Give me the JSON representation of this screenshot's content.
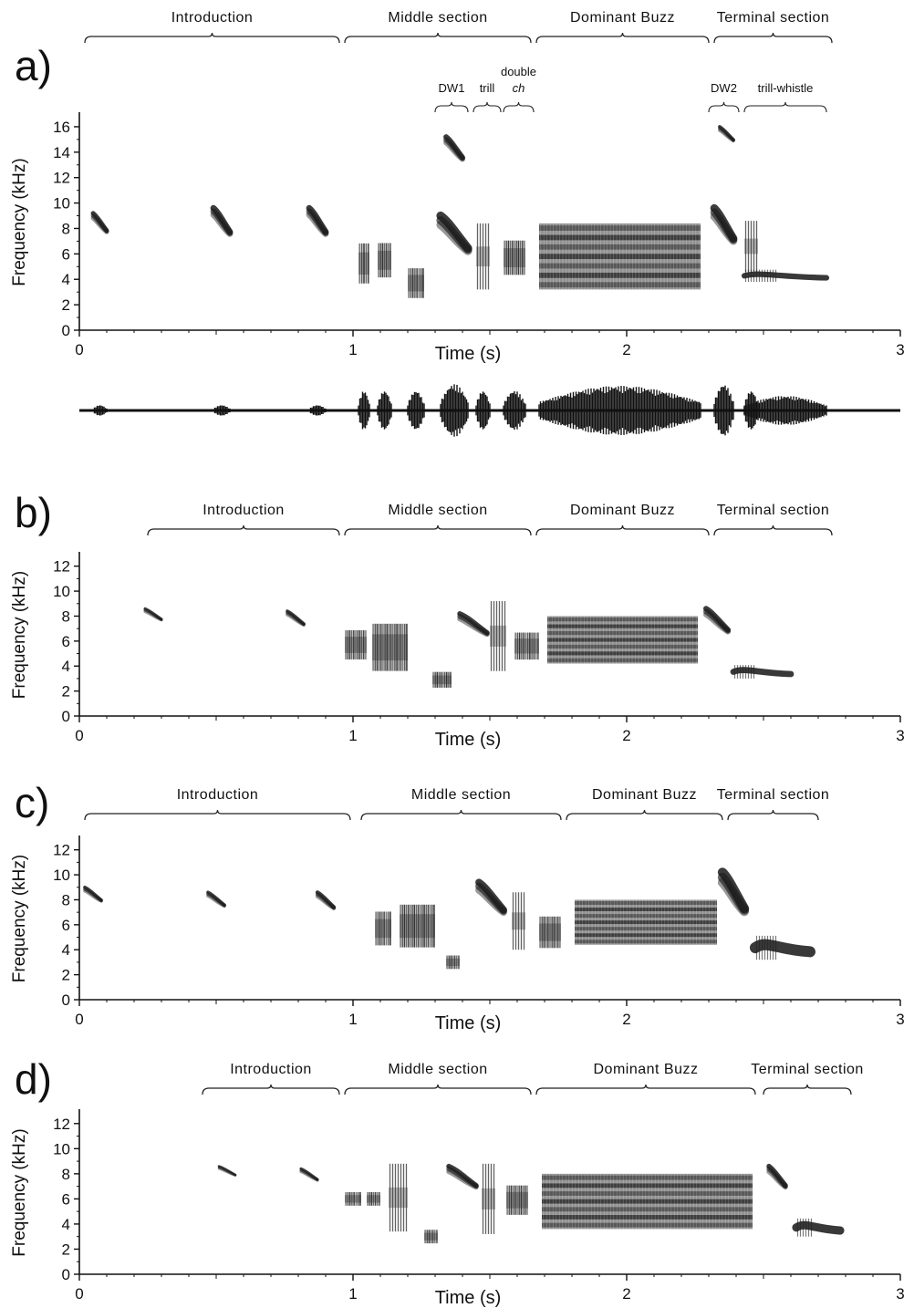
{
  "chart_data": [
    {
      "panel": "a)",
      "type": "spectrogram",
      "ylabel": "Frequency (kHz)",
      "xlabel": "Time (s)",
      "xlim": [
        0,
        3
      ],
      "ylim": [
        0,
        17
      ],
      "yticks": [
        "0",
        "2",
        "4",
        "6",
        "8",
        "10",
        "12",
        "14",
        "16"
      ],
      "xticks": [
        "0",
        "1",
        "2",
        "3"
      ],
      "sections": [
        {
          "label": "Introduction",
          "start": 0.02,
          "end": 0.95
        },
        {
          "label": "Middle section",
          "start": 0.97,
          "end": 1.65
        },
        {
          "label": "Dominant Buzz",
          "start": 1.67,
          "end": 2.3
        },
        {
          "label": "Terminal section",
          "start": 2.32,
          "end": 2.75
        }
      ],
      "subsections": [
        {
          "label": "DW1",
          "start": 1.3,
          "end": 1.42
        },
        {
          "label": "trill",
          "start": 1.44,
          "end": 1.54
        },
        {
          "label": "double",
          "label2": "ch",
          "start": 1.55,
          "end": 1.66
        },
        {
          "label": "DW2",
          "start": 2.3,
          "end": 2.41
        },
        {
          "label": "trill-whistle",
          "start": 2.43,
          "end": 2.73
        }
      ],
      "elements": [
        {
          "t0": 0.05,
          "t1": 0.1,
          "f0": 7.6,
          "f1": 9.2,
          "shape": "down"
        },
        {
          "t0": 0.49,
          "t1": 0.55,
          "f0": 7.4,
          "f1": 9.6,
          "shape": "down"
        },
        {
          "t0": 0.84,
          "t1": 0.9,
          "f0": 7.4,
          "f1": 9.6,
          "shape": "down"
        },
        {
          "t0": 1.02,
          "t1": 1.06,
          "f0": 3.5,
          "f1": 7.0,
          "shape": "block"
        },
        {
          "t0": 1.09,
          "t1": 1.14,
          "f0": 4.0,
          "f1": 7.0,
          "shape": "block"
        },
        {
          "t0": 1.2,
          "t1": 1.26,
          "f0": 2.4,
          "f1": 5.0,
          "shape": "block"
        },
        {
          "t0": 1.32,
          "t1": 1.42,
          "f0": 6.0,
          "f1": 9.0,
          "shape": "down"
        },
        {
          "t0": 1.34,
          "t1": 1.4,
          "f0": 13.3,
          "f1": 15.2,
          "shape": "down"
        },
        {
          "t0": 1.45,
          "t1": 1.5,
          "f0": 3.2,
          "f1": 8.4,
          "shape": "bars"
        },
        {
          "t0": 1.55,
          "t1": 1.63,
          "f0": 4.2,
          "f1": 7.2,
          "shape": "block"
        },
        {
          "t0": 1.68,
          "t1": 2.27,
          "f0": 3.2,
          "f1": 8.4,
          "shape": "buzz"
        },
        {
          "t0": 2.32,
          "t1": 2.39,
          "f0": 6.8,
          "f1": 9.6,
          "shape": "down"
        },
        {
          "t0": 2.34,
          "t1": 2.39,
          "f0": 14.8,
          "f1": 16.0,
          "shape": "down"
        },
        {
          "t0": 2.43,
          "t1": 2.73,
          "f0": 3.8,
          "f1": 4.6,
          "shape": "whistle"
        },
        {
          "t0": 2.43,
          "t1": 2.48,
          "f0": 4.6,
          "f1": 8.6,
          "shape": "bars"
        }
      ],
      "waveform": true
    },
    {
      "panel": "b)",
      "type": "spectrogram",
      "ylabel": "Frequency (kHz)",
      "xlabel": "Time (s)",
      "xlim": [
        0,
        3
      ],
      "ylim": [
        0,
        13
      ],
      "yticks": [
        "0",
        "2",
        "4",
        "6",
        "8",
        "10",
        "12"
      ],
      "xticks": [
        "0",
        "1",
        "2",
        "3"
      ],
      "sections": [
        {
          "label": "Introduction",
          "start": 0.25,
          "end": 0.95
        },
        {
          "label": "Middle section",
          "start": 0.97,
          "end": 1.65
        },
        {
          "label": "Dominant Buzz",
          "start": 1.67,
          "end": 2.3
        },
        {
          "label": "Terminal section",
          "start": 2.32,
          "end": 2.75
        }
      ],
      "elements": [
        {
          "t0": 0.24,
          "t1": 0.3,
          "f0": 7.6,
          "f1": 8.6,
          "shape": "down"
        },
        {
          "t0": 0.76,
          "t1": 0.82,
          "f0": 7.2,
          "f1": 8.4,
          "shape": "down"
        },
        {
          "t0": 0.97,
          "t1": 1.05,
          "f0": 4.4,
          "f1": 7.0,
          "shape": "block"
        },
        {
          "t0": 1.07,
          "t1": 1.2,
          "f0": 3.4,
          "f1": 7.6,
          "shape": "block"
        },
        {
          "t0": 1.29,
          "t1": 1.36,
          "f0": 2.2,
          "f1": 3.6,
          "shape": "block"
        },
        {
          "t0": 1.39,
          "t1": 1.49,
          "f0": 6.4,
          "f1": 8.2,
          "shape": "down"
        },
        {
          "t0": 1.5,
          "t1": 1.56,
          "f0": 3.6,
          "f1": 9.2,
          "shape": "bars"
        },
        {
          "t0": 1.59,
          "t1": 1.68,
          "f0": 4.4,
          "f1": 6.8,
          "shape": "block"
        },
        {
          "t0": 1.71,
          "t1": 2.26,
          "f0": 4.2,
          "f1": 8.0,
          "shape": "buzz"
        },
        {
          "t0": 2.29,
          "t1": 2.37,
          "f0": 6.6,
          "f1": 8.6,
          "shape": "down"
        },
        {
          "t0": 2.39,
          "t1": 2.6,
          "f0": 3.0,
          "f1": 3.9,
          "shape": "whistle"
        }
      ]
    },
    {
      "panel": "c)",
      "type": "spectrogram",
      "ylabel": "Frequency (kHz)",
      "xlabel": "Time (s)",
      "xlim": [
        0,
        3
      ],
      "ylim": [
        0,
        13
      ],
      "yticks": [
        "0",
        "2",
        "4",
        "6",
        "8",
        "10",
        "12"
      ],
      "xticks": [
        "0",
        "1",
        "2",
        "3"
      ],
      "sections": [
        {
          "label": "Introduction",
          "start": 0.02,
          "end": 0.99
        },
        {
          "label": "Middle section",
          "start": 1.03,
          "end": 1.76
        },
        {
          "label": "Dominant Buzz",
          "start": 1.78,
          "end": 2.35
        },
        {
          "label": "Terminal section",
          "start": 2.37,
          "end": 2.7
        }
      ],
      "elements": [
        {
          "t0": 0.02,
          "t1": 0.08,
          "f0": 7.8,
          "f1": 9.0,
          "shape": "down"
        },
        {
          "t0": 0.47,
          "t1": 0.53,
          "f0": 7.4,
          "f1": 8.6,
          "shape": "down"
        },
        {
          "t0": 0.87,
          "t1": 0.93,
          "f0": 7.2,
          "f1": 8.6,
          "shape": "down"
        },
        {
          "t0": 1.08,
          "t1": 1.14,
          "f0": 4.2,
          "f1": 7.2,
          "shape": "block"
        },
        {
          "t0": 1.17,
          "t1": 1.3,
          "f0": 4.0,
          "f1": 7.8,
          "shape": "block"
        },
        {
          "t0": 1.34,
          "t1": 1.39,
          "f0": 2.4,
          "f1": 3.6,
          "shape": "block"
        },
        {
          "t0": 1.46,
          "t1": 1.55,
          "f0": 6.8,
          "f1": 9.4,
          "shape": "down"
        },
        {
          "t0": 1.58,
          "t1": 1.63,
          "f0": 4.0,
          "f1": 8.6,
          "shape": "bars"
        },
        {
          "t0": 1.68,
          "t1": 1.76,
          "f0": 4.0,
          "f1": 6.8,
          "shape": "block"
        },
        {
          "t0": 1.81,
          "t1": 2.33,
          "f0": 4.4,
          "f1": 8.0,
          "shape": "buzz"
        },
        {
          "t0": 2.35,
          "t1": 2.43,
          "f0": 6.8,
          "f1": 10.2,
          "shape": "down"
        },
        {
          "t0": 2.47,
          "t1": 2.67,
          "f0": 3.2,
          "f1": 4.8,
          "shape": "whistle"
        }
      ]
    },
    {
      "panel": "d)",
      "type": "spectrogram",
      "ylabel": "Frequency (kHz)",
      "xlabel": "Time (s)",
      "xlim": [
        0,
        3
      ],
      "ylim": [
        0,
        13
      ],
      "yticks": [
        "0",
        "2",
        "4",
        "6",
        "8",
        "10",
        "12"
      ],
      "xticks": [
        "0",
        "1",
        "2",
        "3"
      ],
      "sections": [
        {
          "label": "Introduction",
          "start": 0.45,
          "end": 0.95
        },
        {
          "label": "Middle section",
          "start": 0.97,
          "end": 1.65
        },
        {
          "label": "Dominant Buzz",
          "start": 1.67,
          "end": 2.47
        },
        {
          "label": "Terminal section",
          "start": 2.5,
          "end": 2.82
        }
      ],
      "elements": [
        {
          "t0": 0.51,
          "t1": 0.57,
          "f0": 7.8,
          "f1": 8.6,
          "shape": "down"
        },
        {
          "t0": 0.81,
          "t1": 0.87,
          "f0": 7.4,
          "f1": 8.4,
          "shape": "down"
        },
        {
          "t0": 0.97,
          "t1": 1.03,
          "f0": 5.4,
          "f1": 6.6,
          "shape": "block"
        },
        {
          "t0": 1.05,
          "t1": 1.1,
          "f0": 5.4,
          "f1": 6.6,
          "shape": "block"
        },
        {
          "t0": 1.13,
          "t1": 1.2,
          "f0": 3.4,
          "f1": 8.8,
          "shape": "bars"
        },
        {
          "t0": 1.26,
          "t1": 1.31,
          "f0": 2.4,
          "f1": 3.6,
          "shape": "block"
        },
        {
          "t0": 1.35,
          "t1": 1.45,
          "f0": 6.8,
          "f1": 8.6,
          "shape": "down"
        },
        {
          "t0": 1.47,
          "t1": 1.52,
          "f0": 3.2,
          "f1": 8.8,
          "shape": "bars"
        },
        {
          "t0": 1.56,
          "t1": 1.64,
          "f0": 4.6,
          "f1": 7.2,
          "shape": "block"
        },
        {
          "t0": 1.69,
          "t1": 2.46,
          "f0": 3.6,
          "f1": 8.0,
          "shape": "buzz"
        },
        {
          "t0": 2.52,
          "t1": 2.58,
          "f0": 6.8,
          "f1": 8.6,
          "shape": "down"
        },
        {
          "t0": 2.62,
          "t1": 2.78,
          "f0": 3.0,
          "f1": 4.2,
          "shape": "whistle"
        }
      ]
    }
  ]
}
